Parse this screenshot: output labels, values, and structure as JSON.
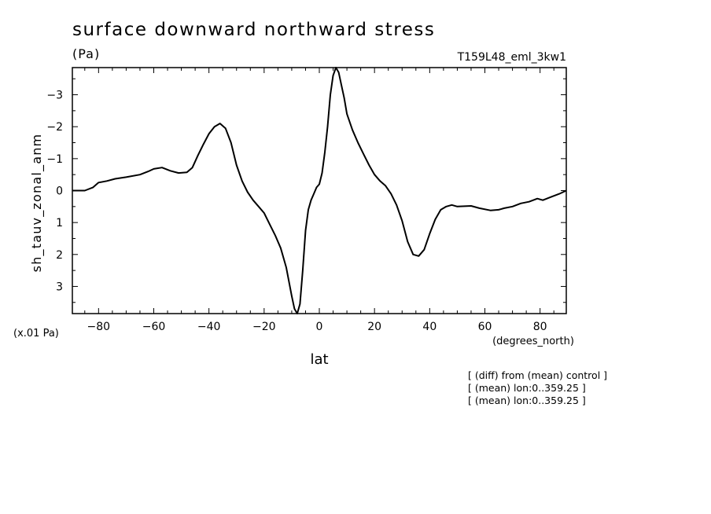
{
  "chart_data": {
    "type": "line",
    "title": "surface downward northward stress",
    "units": "(Pa)",
    "run_label": "T159L48_eml_3kw1",
    "ylabel": "sh_tauv_zonal_anm",
    "xlabel": "lat",
    "x_units": "(degrees_north)",
    "y_scale_note": "(x.01 Pa)",
    "notes": [
      "[ (diff) from (mean) control ]",
      "[ (mean) lon:0..359.25 ]",
      "[ (mean) lon:0..359.25 ]"
    ],
    "xlim": [
      -89.5,
      89.5
    ],
    "ylim": [
      3.85,
      -3.85
    ],
    "y_inverted": true,
    "x_ticks": [
      -80,
      -60,
      -40,
      -20,
      0,
      20,
      40,
      60,
      80
    ],
    "x_tick_labels": [
      "−80",
      "−60",
      "−40",
      "−20",
      "0",
      "20",
      "40",
      "60",
      "80"
    ],
    "y_ticks": [
      -3,
      -2,
      -1,
      0,
      1,
      2,
      3
    ],
    "y_tick_labels": [
      "−3",
      "−2",
      "−1",
      "0",
      "1",
      "2",
      "3"
    ],
    "x": [
      -89.5,
      -85,
      -82,
      -80,
      -77,
      -74,
      -70,
      -65,
      -62,
      -60,
      -57,
      -54,
      -51,
      -48,
      -46,
      -44,
      -42,
      -40,
      -38,
      -36,
      -34,
      -32,
      -30,
      -28,
      -26,
      -24,
      -22,
      -20,
      -18,
      -16,
      -14,
      -12,
      -10,
      -9,
      -8,
      -7,
      -6,
      -5,
      -4,
      -3,
      -2,
      -1,
      0,
      1,
      2,
      3,
      4,
      5,
      6,
      7,
      8,
      9,
      10,
      12,
      14,
      16,
      18,
      20,
      22,
      24,
      26,
      28,
      30,
      32,
      34,
      36,
      38,
      40,
      42,
      44,
      46,
      48,
      50,
      55,
      58,
      62,
      65,
      67,
      70,
      73,
      76,
      79,
      81,
      84,
      87,
      89.5
    ],
    "y": [
      0.0,
      0.0,
      -0.1,
      -0.25,
      -0.3,
      -0.37,
      -0.42,
      -0.5,
      -0.6,
      -0.68,
      -0.72,
      -0.62,
      -0.55,
      -0.57,
      -0.72,
      -1.1,
      -1.45,
      -1.78,
      -2.0,
      -2.1,
      -1.95,
      -1.5,
      -0.8,
      -0.3,
      0.05,
      0.3,
      0.5,
      0.7,
      1.05,
      1.4,
      1.8,
      2.4,
      3.3,
      3.7,
      3.85,
      3.55,
      2.5,
      1.25,
      0.6,
      0.3,
      0.1,
      -0.1,
      -0.2,
      -0.55,
      -1.2,
      -2.0,
      -3.0,
      -3.6,
      -3.85,
      -3.7,
      -3.3,
      -2.9,
      -2.4,
      -1.9,
      -1.5,
      -1.15,
      -0.8,
      -0.5,
      -0.3,
      -0.15,
      0.1,
      0.45,
      0.95,
      1.6,
      2.0,
      2.05,
      1.85,
      1.35,
      0.9,
      0.6,
      0.5,
      0.45,
      0.5,
      0.48,
      0.55,
      0.62,
      0.6,
      0.55,
      0.5,
      0.4,
      0.35,
      0.25,
      0.3,
      0.2,
      0.1,
      0.0
    ]
  }
}
